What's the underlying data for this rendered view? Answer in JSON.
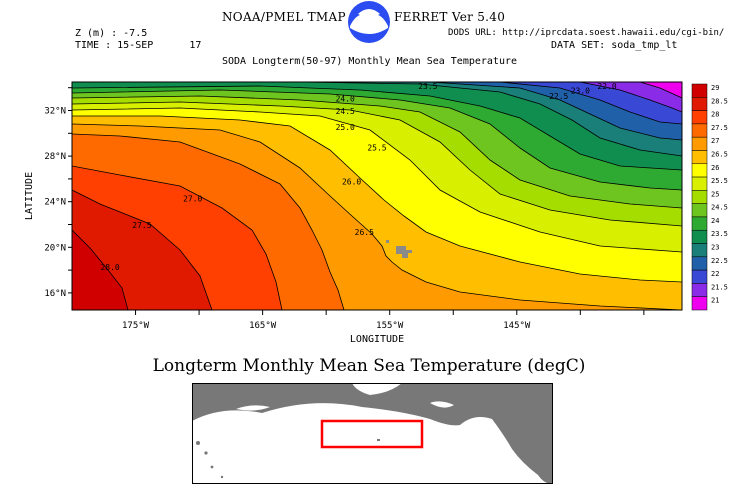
{
  "header": {
    "left_title": "NOAA/PMEL TMAP",
    "right_title": "FERRET Ver 5.40",
    "z_line": "Z (m) : -7.5",
    "time_line": "TIME : 15-SEP      17",
    "dods_url": "DODS URL: http://iprcdata.soest.hawaii.edu/cgi-bin/",
    "data_set": "DATA SET: soda_tmp_lt",
    "plot_title": "SODA Longterm(50-97) Monthly Mean Sea Temperature"
  },
  "chart_data": {
    "type": "heatmap",
    "subtype": "filled-contour",
    "title": "SODA Longterm(50-97) Monthly Mean Sea Temperature",
    "xlabel": "LONGITUDE",
    "ylabel": "LATITUDE",
    "x_ticks": [
      "175°W",
      "165°W",
      "155°W",
      "145°W"
    ],
    "y_ticks": [
      "32°N",
      "28°N",
      "24°N",
      "20°N",
      "16°N"
    ],
    "contour_labels": [
      {
        "value": "23.5",
        "x": -152,
        "y": 33.9
      },
      {
        "value": "23.0",
        "x": -140,
        "y": 33.5
      },
      {
        "value": "22.5",
        "x": -141.7,
        "y": 33.0
      },
      {
        "value": "22.0",
        "x": -137.9,
        "y": 33.9
      },
      {
        "value": "24.0",
        "x": -158.5,
        "y": 32.8
      },
      {
        "value": "24.5",
        "x": -158.5,
        "y": 31.7
      },
      {
        "value": "25.0",
        "x": -158.5,
        "y": 30.3
      },
      {
        "value": "25.5",
        "x": -156,
        "y": 28.5
      },
      {
        "value": "26.0",
        "x": -158,
        "y": 25.5
      },
      {
        "value": "27.0",
        "x": -170.5,
        "y": 24.0
      },
      {
        "value": "27.5",
        "x": -174.5,
        "y": 21.7
      },
      {
        "value": "28.0",
        "x": -177,
        "y": 18.0
      },
      {
        "value": "26.5",
        "x": -157,
        "y": 21.1
      }
    ],
    "colorbar": {
      "levels": [
        "29",
        "28.5",
        "28",
        "27.5",
        "27",
        "26.5",
        "26",
        "25.5",
        "25",
        "24.5",
        "24",
        "23.5",
        "23",
        "22.5",
        "22",
        "21.5",
        "21"
      ],
      "colors": [
        "#d00000",
        "#e01a00",
        "#ff4000",
        "#ff6a00",
        "#ff9a00",
        "#ffbf00",
        "#ffff00",
        "#d8f000",
        "#a6dd00",
        "#6fc520",
        "#2eaa33",
        "#108e50",
        "#1a7f78",
        "#2060a8",
        "#3a48d6",
        "#8a2be8",
        "#ee00ee"
      ]
    },
    "bands": [
      {
        "level": 28.5,
        "color": "#d00000"
      },
      {
        "level": 28,
        "color": "#e01a00"
      },
      {
        "level": 27.5,
        "color": "#ff4000"
      },
      {
        "level": 27,
        "color": "#ff6a00"
      },
      {
        "level": 26.5,
        "color": "#ff9a00"
      },
      {
        "level": 26,
        "color": "#ffbf00"
      },
      {
        "level": 25.5,
        "color": "#ffff00"
      },
      {
        "level": 25,
        "color": "#d8f000"
      },
      {
        "level": 24.5,
        "color": "#a6dd00"
      },
      {
        "level": 24,
        "color": "#6fc520"
      },
      {
        "level": 23.5,
        "color": "#2eaa33"
      },
      {
        "level": 23,
        "color": "#108e50"
      },
      {
        "level": 22.5,
        "color": "#1a7f78"
      },
      {
        "level": 22,
        "color": "#2060a8"
      },
      {
        "level": 21.5,
        "color": "#3a48d6"
      },
      {
        "level": 21,
        "color": "#8a2be8"
      }
    ],
    "xlim": [
      -180,
      -132
    ],
    "ylim": [
      14.5,
      34.5
    ],
    "grid": false,
    "legend": "right colorbar"
  },
  "bottom_title": "Longterm Monthly Mean Sea Temperature (degC)",
  "colors": {
    "land": "#787878",
    "ocean": "#ffffff",
    "region_box": "#ff0000"
  }
}
